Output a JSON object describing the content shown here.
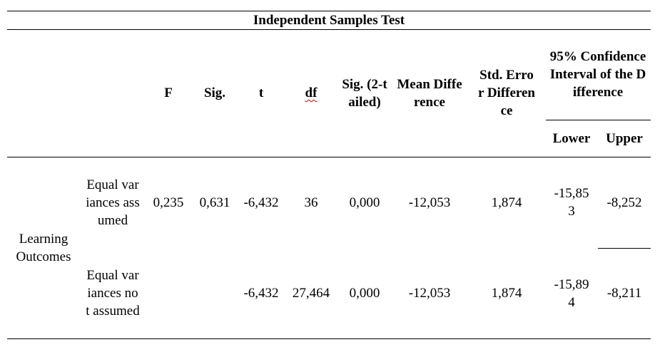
{
  "table": {
    "title": "Independent Samples Test",
    "headers": [
      "F",
      "Sig.",
      "t",
      "df",
      "Sig. (2-tailed)",
      "Mean Difference",
      "Std. Error Difference"
    ],
    "ci_header": "95% Confidence Interval of the Difference",
    "ci_subheaders": [
      "Lower",
      "Upper"
    ],
    "row_group": "Learning Outcomes",
    "rows": [
      {
        "label": "Equal variances assumed",
        "cells": [
          "0,235",
          "0,631",
          "-6,432",
          "36",
          "0,000",
          "-12,053",
          "1,874",
          "-15,853",
          "-8,252"
        ]
      },
      {
        "label": "Equal variances not assumed",
        "cells": [
          null,
          null,
          "-6,432",
          "27,464",
          "0,000",
          "-12,053",
          "1,874",
          "-15,894",
          "-8,211"
        ]
      }
    ]
  }
}
